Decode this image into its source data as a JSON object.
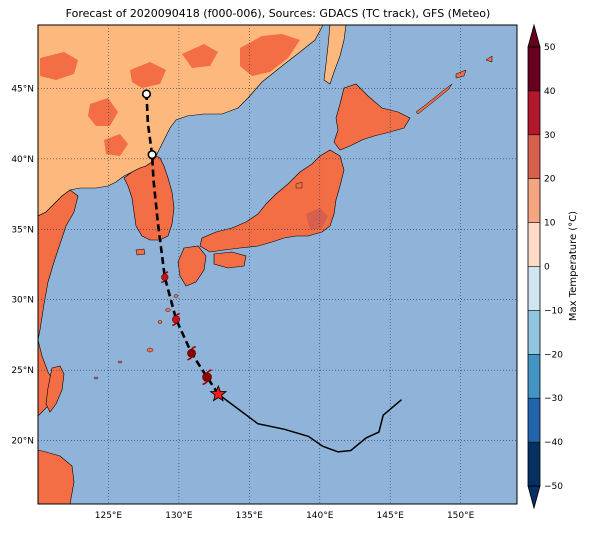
{
  "title": "Forecast of 2020090418 (f000-006), Sources: GDACS (TC track), GFS (Meteo)",
  "map": {
    "lon_range": [
      120,
      154
    ],
    "lat_range": [
      15.5,
      49.5
    ],
    "lon_ticks": [
      {
        "value": 125,
        "label": "125°E"
      },
      {
        "value": 130,
        "label": "130°E"
      },
      {
        "value": 135,
        "label": "135°E"
      },
      {
        "value": 140,
        "label": "140°E"
      },
      {
        "value": 145,
        "label": "145°E"
      },
      {
        "value": 150,
        "label": "150°E"
      }
    ],
    "lat_ticks": [
      {
        "value": 20,
        "label": "20°N"
      },
      {
        "value": 25,
        "label": "25°N"
      },
      {
        "value": 30,
        "label": "30°N"
      },
      {
        "value": 35,
        "label": "35°N"
      },
      {
        "value": 40,
        "label": "40°N"
      },
      {
        "value": 45,
        "label": "45°N"
      }
    ],
    "gridlines": true,
    "ocean_color": "#8fb3d9",
    "land_color_warm": "#fdb97d",
    "land_color_hot": "#f36d45"
  },
  "colorbar": {
    "label": "Max Temperature (°C)",
    "ticks": [
      "50",
      "40",
      "30",
      "20",
      "10",
      "0",
      "−10",
      "−20",
      "−30",
      "−40",
      "−50"
    ],
    "colors": [
      "#67001f",
      "#b2182b",
      "#d6604d",
      "#f4a582",
      "#fddbc7",
      "#f7f7f7",
      "#d1e5f0",
      "#92c5de",
      "#4393c3",
      "#2166ac",
      "#053061"
    ]
  },
  "track": {
    "past": [
      [
        145.8,
        22.9
      ],
      [
        144.5,
        21.8
      ],
      [
        144.2,
        20.6
      ],
      [
        143.3,
        20.2
      ],
      [
        142.2,
        19.3
      ],
      [
        141.3,
        19.2
      ],
      [
        140.2,
        19.6
      ],
      [
        139.2,
        20.3
      ],
      [
        137.5,
        20.8
      ],
      [
        135.6,
        21.2
      ],
      [
        132.8,
        23.3
      ]
    ],
    "forecast": [
      [
        132.8,
        23.3
      ],
      [
        132.0,
        24.5
      ],
      [
        130.9,
        26.2
      ],
      [
        129.8,
        28.6
      ],
      [
        129.0,
        31.6
      ],
      [
        128.5,
        35.5
      ],
      [
        128.2,
        38.5
      ],
      [
        128.1,
        40.3
      ],
      [
        127.8,
        42.5
      ],
      [
        127.7,
        44.6
      ]
    ],
    "current_position": [
      132.8,
      23.3
    ],
    "forecast_storms": [
      [
        132.0,
        24.5
      ],
      [
        130.9,
        26.2
      ],
      [
        129.8,
        28.6
      ],
      [
        129.0,
        31.6
      ]
    ],
    "ex_tropical": [
      [
        128.1,
        40.3
      ],
      [
        127.7,
        44.6
      ]
    ]
  }
}
